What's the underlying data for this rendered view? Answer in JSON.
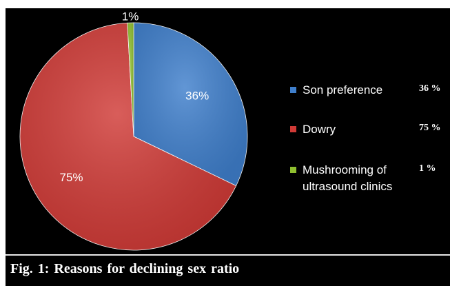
{
  "caption": "Fig. 1: Reasons for declining sex ratio",
  "chart_data": {
    "type": "pie",
    "slices": [
      {
        "name": "Son preference",
        "value": 36,
        "label": "36%",
        "legend_value": "36 %",
        "color": "#3f7fcc"
      },
      {
        "name": "Dowry",
        "value": 75,
        "label": "75%",
        "legend_value": "75 %",
        "color": "#d03a36"
      },
      {
        "name": "Mushrooming of ultrasound clinics",
        "legend_lines": [
          "Mushrooming of",
          "ultrasound clinics"
        ],
        "value": 1,
        "label": "1%",
        "legend_value": "1 %",
        "color": "#8fbf2f"
      }
    ],
    "title": "",
    "legend_position": "right",
    "background": "#000000"
  }
}
